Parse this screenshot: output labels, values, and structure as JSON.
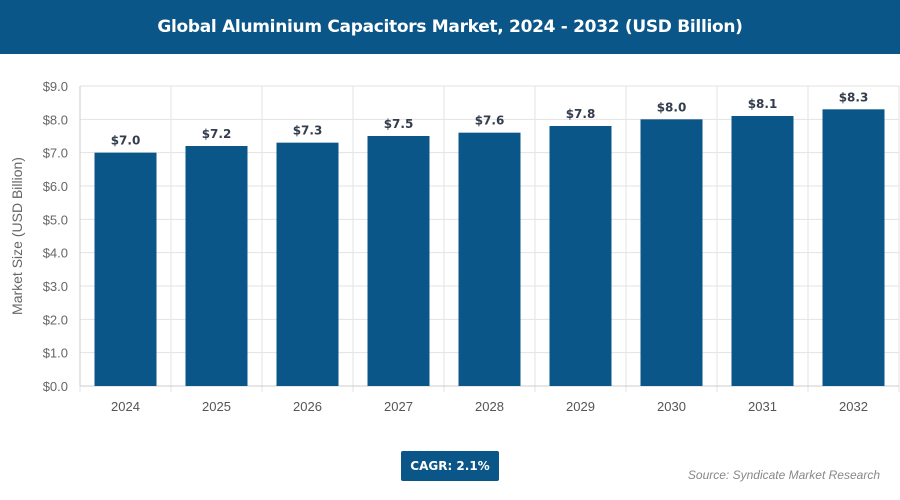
{
  "chart_data": {
    "type": "bar",
    "title": "Global Aluminium Capacitors Market, 2024 - 2032 (USD Billion)",
    "xlabel": "",
    "ylabel": "Market Size (USD Billion)",
    "categories": [
      "2024",
      "2025",
      "2026",
      "2027",
      "2028",
      "2029",
      "2030",
      "2031",
      "2032"
    ],
    "values": [
      7.0,
      7.2,
      7.3,
      7.5,
      7.6,
      7.8,
      8.0,
      8.1,
      8.3
    ],
    "data_labels": [
      "$7.0",
      "$7.2",
      "$7.3",
      "$7.5",
      "$7.6",
      "$7.8",
      "$8.0",
      "$8.1",
      "$8.3"
    ],
    "ylim": [
      0,
      9
    ],
    "yticks": [
      "$0.0",
      "$1.0",
      "$2.0",
      "$3.0",
      "$4.0",
      "$5.0",
      "$6.0",
      "$7.0",
      "$8.0",
      "$9.0"
    ],
    "grid": true,
    "bar_color": "#0b5688"
  },
  "cagr_label": "CAGR: 2.1%",
  "source": "Source: Syndicate Market Research"
}
